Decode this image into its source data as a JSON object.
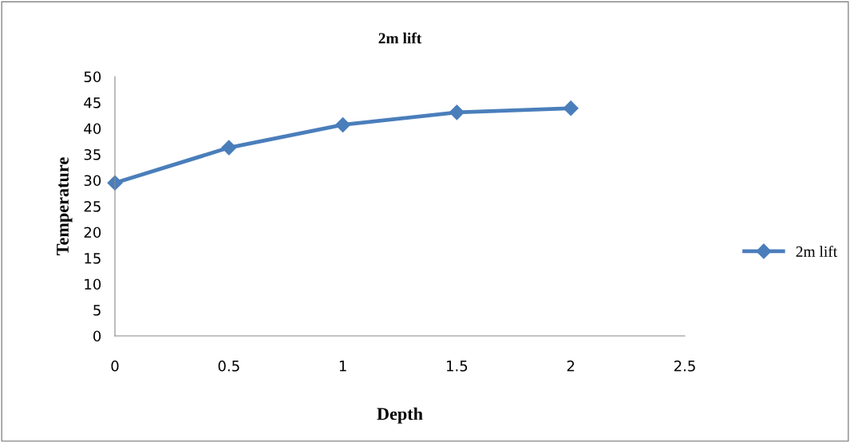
{
  "chart_data": {
    "type": "line",
    "title": "2m lift",
    "xlabel": "Depth",
    "ylabel": "Temperature",
    "x": [
      0,
      0.5,
      1,
      1.5,
      2
    ],
    "series": [
      {
        "name": "2m lift",
        "color": "#4a7ebb",
        "values": [
          29.5,
          36.3,
          40.7,
          43.1,
          43.9
        ]
      }
    ],
    "xlim": [
      0,
      2.5
    ],
    "xticks": [
      0,
      0.5,
      1,
      1.5,
      2,
      2.5
    ],
    "ylim": [
      0,
      50
    ],
    "yticks": [
      0,
      5,
      10,
      15,
      20,
      25,
      30,
      35,
      40,
      45,
      50
    ],
    "grid": false,
    "legend": "right",
    "marker": "diamond",
    "line_style": "solid"
  }
}
